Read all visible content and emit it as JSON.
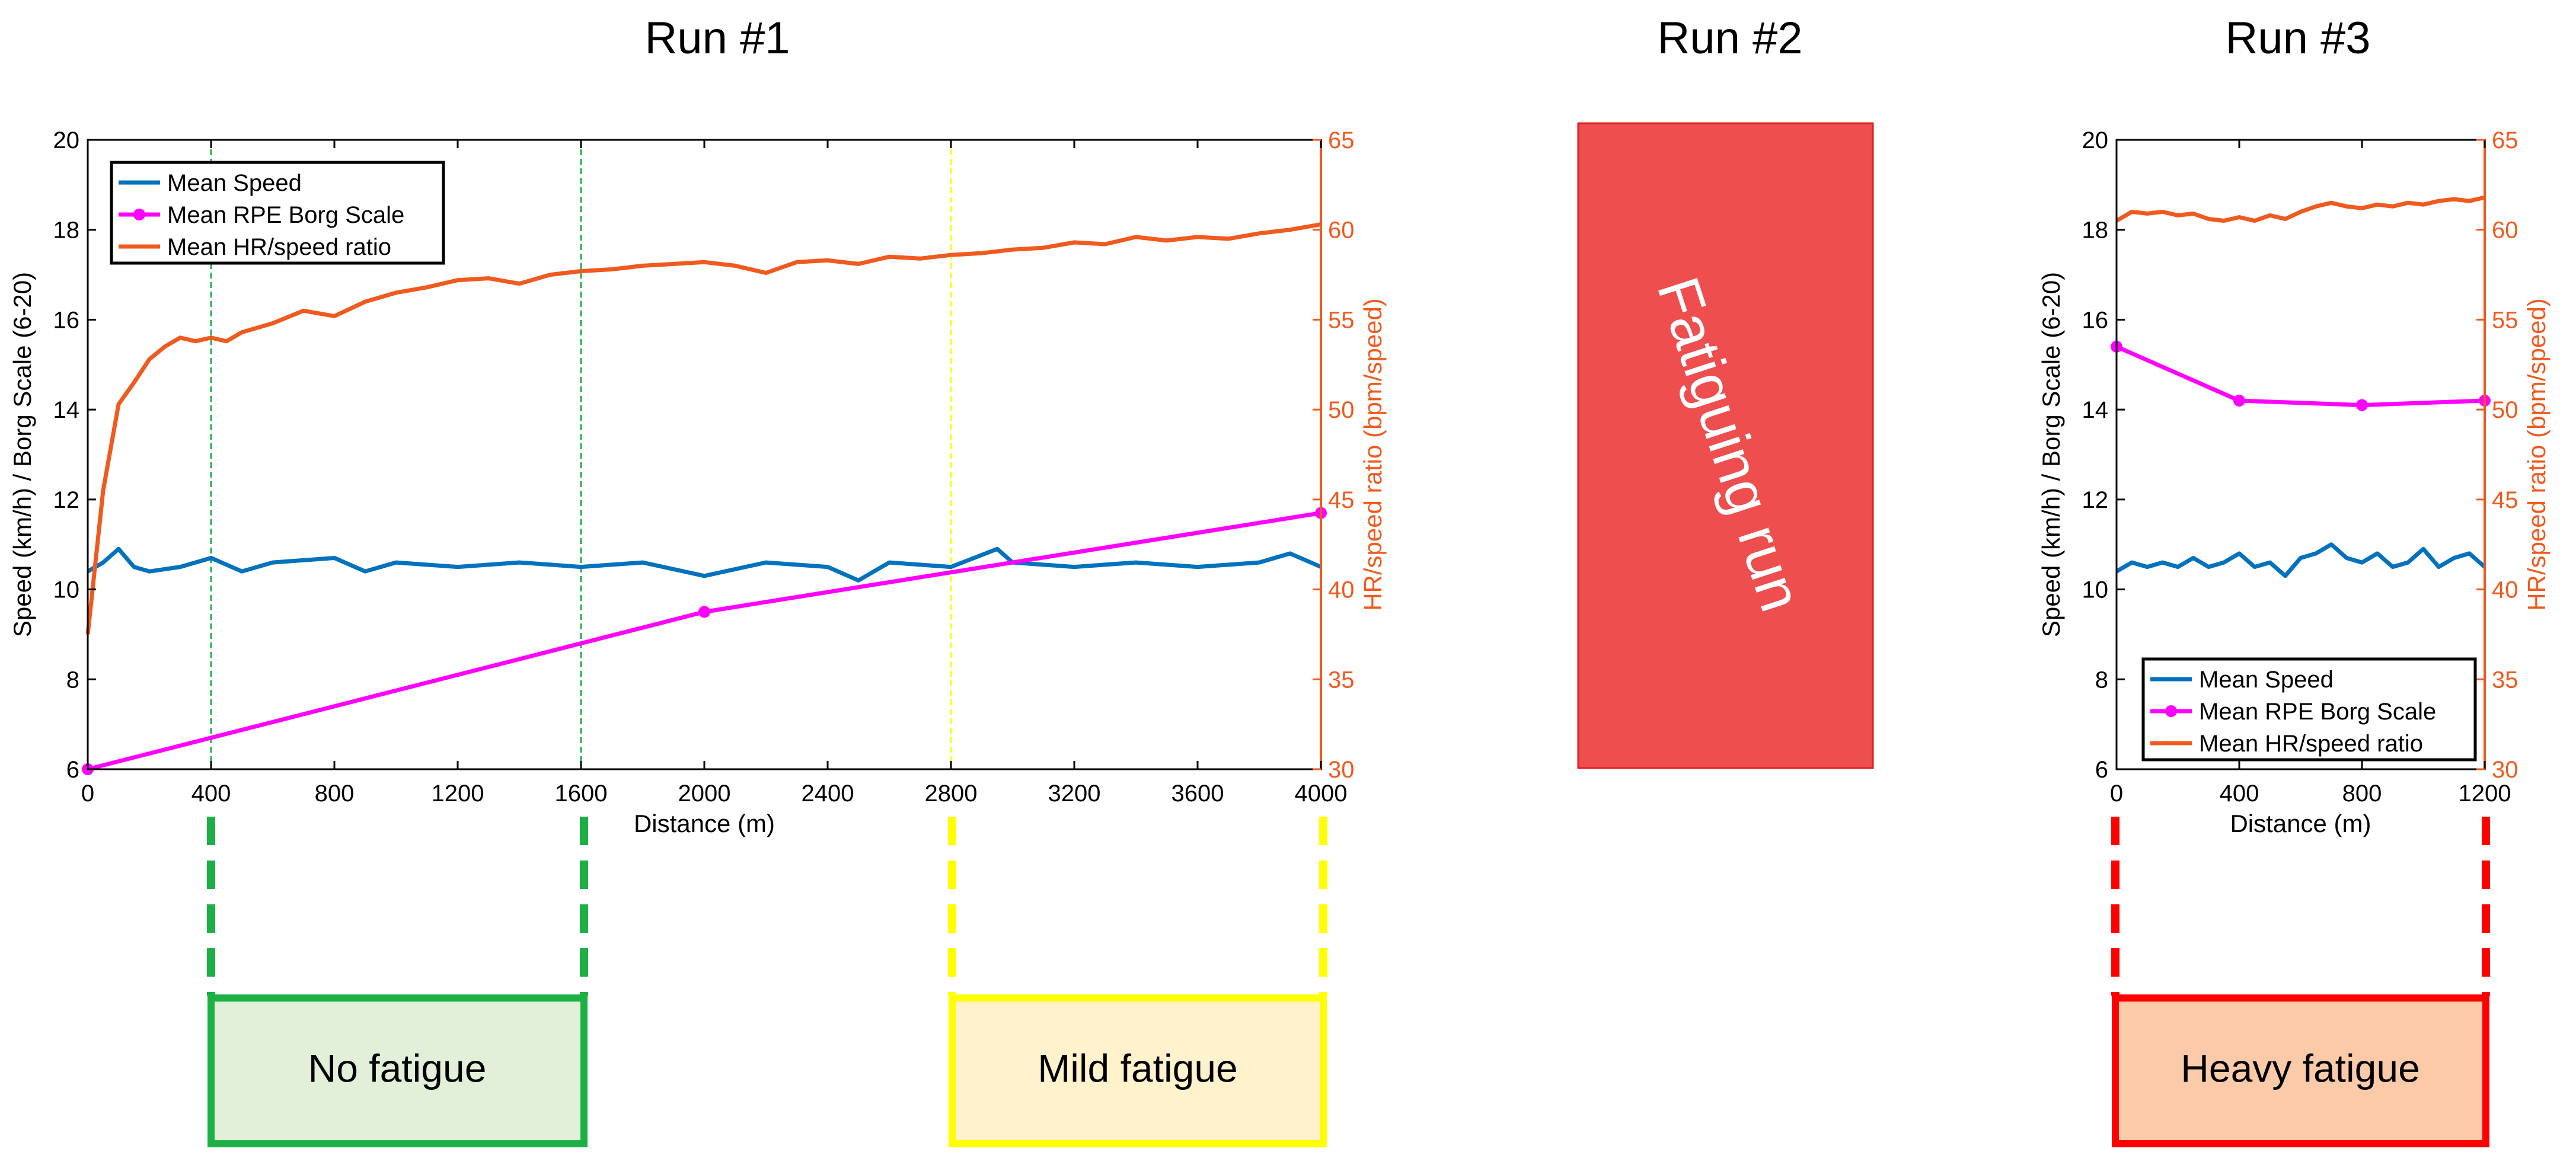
{
  "colors": {
    "speed": "#0072BD",
    "rpe": "#FF00FF",
    "hr": "#F05A1E",
    "green": "#1DB145",
    "yellow": "#FFFF00",
    "red": "#FF0000",
    "no_fatigue_fill": "#E2F0D9",
    "mild_fatigue_fill": "#FFF2CC",
    "heavy_fatigue_fill": "#FBCBA9",
    "fatiguing_run_fill": "#EE4E4E"
  },
  "figure": {
    "run1_title": "Run #1",
    "run2_title": "Run #2",
    "run3_title": "Run #3",
    "fatiguing_run_label": "Fatiguing run",
    "zones": {
      "no_fatigue": "No fatigue",
      "mild_fatigue": "Mild fatigue",
      "heavy_fatigue": "Heavy fatigue"
    }
  },
  "chart_data": [
    {
      "type": "line",
      "title": "Run #1",
      "xlabel": "Distance (m)",
      "ylabel": "Speed (km/h) / Borg Scale (6-20)",
      "ylabel_right": "HR/speed ratio (bpm/speed)",
      "xlim": [
        0,
        4000
      ],
      "ylim": [
        6,
        20
      ],
      "ylim_right": [
        30,
        65
      ],
      "xticks": [
        0,
        400,
        800,
        1200,
        1600,
        2000,
        2400,
        2800,
        3200,
        3600,
        4000
      ],
      "yticks": [
        6,
        8,
        10,
        12,
        14,
        16,
        18,
        20
      ],
      "yticks_right": [
        30,
        35,
        40,
        45,
        50,
        55,
        60,
        65
      ],
      "legend": [
        "Mean Speed",
        "Mean RPE Borg Scale",
        "Mean HR/speed ratio"
      ],
      "legend_position": "top-left",
      "vlines": [
        {
          "x": 400,
          "color": "green"
        },
        {
          "x": 1600,
          "color": "green"
        },
        {
          "x": 2800,
          "color": "yellow"
        },
        {
          "x": 4000,
          "color": "yellow"
        }
      ],
      "series": [
        {
          "name": "Mean Speed",
          "axis": "left",
          "color": "speed",
          "x": [
            0,
            50,
            100,
            150,
            200,
            300,
            400,
            500,
            600,
            800,
            900,
            1000,
            1200,
            1400,
            1600,
            1800,
            2000,
            2200,
            2400,
            2500,
            2600,
            2800,
            2950,
            3000,
            3200,
            3400,
            3600,
            3800,
            3900,
            4000
          ],
          "values": [
            10.4,
            10.6,
            10.9,
            10.5,
            10.4,
            10.5,
            10.7,
            10.4,
            10.6,
            10.7,
            10.4,
            10.6,
            10.5,
            10.6,
            10.5,
            10.6,
            10.3,
            10.6,
            10.5,
            10.2,
            10.6,
            10.5,
            10.9,
            10.6,
            10.5,
            10.6,
            10.5,
            10.6,
            10.8,
            10.5
          ]
        },
        {
          "name": "Mean RPE Borg Scale",
          "axis": "left",
          "color": "rpe",
          "markers": true,
          "x": [
            0,
            2000,
            4000
          ],
          "values": [
            6.0,
            9.5,
            11.7
          ]
        },
        {
          "name": "Mean HR/speed ratio",
          "axis": "right",
          "color": "hr",
          "x": [
            0,
            50,
            100,
            150,
            200,
            250,
            300,
            350,
            400,
            450,
            500,
            600,
            700,
            800,
            900,
            1000,
            1100,
            1200,
            1300,
            1400,
            1500,
            1600,
            1700,
            1800,
            1900,
            2000,
            2100,
            2200,
            2300,
            2400,
            2500,
            2600,
            2700,
            2800,
            2900,
            3000,
            3100,
            3200,
            3300,
            3400,
            3500,
            3600,
            3700,
            3800,
            3900,
            4000
          ],
          "values": [
            37.5,
            45.5,
            50.3,
            51.5,
            52.8,
            53.5,
            54.0,
            53.8,
            54.0,
            53.8,
            54.3,
            54.8,
            55.5,
            55.2,
            56.0,
            56.5,
            56.8,
            57.2,
            57.3,
            57.0,
            57.5,
            57.7,
            57.8,
            58.0,
            58.1,
            58.2,
            58.0,
            57.6,
            58.2,
            58.3,
            58.1,
            58.5,
            58.4,
            58.6,
            58.7,
            58.9,
            59.0,
            59.3,
            59.2,
            59.6,
            59.4,
            59.6,
            59.5,
            59.8,
            60.0,
            60.3
          ]
        }
      ]
    },
    {
      "type": "line",
      "title": "Run #3",
      "xlabel": "Distance (m)",
      "ylabel": "Speed (km/h) / Borg Scale (6-20)",
      "ylabel_right": "HR/speed ratio (bpm/speed)",
      "xlim": [
        0,
        1200
      ],
      "ylim": [
        6,
        20
      ],
      "ylim_right": [
        30,
        65
      ],
      "xticks": [
        0,
        400,
        800,
        1200
      ],
      "yticks": [
        6,
        8,
        10,
        12,
        14,
        16,
        18,
        20
      ],
      "yticks_right": [
        30,
        35,
        40,
        45,
        50,
        55,
        60,
        65
      ],
      "legend": [
        "Mean Speed",
        "Mean RPE Borg Scale",
        "Mean HR/speed ratio"
      ],
      "legend_position": "bottom-right",
      "vlines": [
        {
          "x": 0,
          "color": "red"
        },
        {
          "x": 1200,
          "color": "red"
        }
      ],
      "series": [
        {
          "name": "Mean Speed",
          "axis": "left",
          "color": "speed",
          "x": [
            0,
            50,
            100,
            150,
            200,
            250,
            300,
            350,
            400,
            450,
            500,
            550,
            600,
            650,
            700,
            750,
            800,
            850,
            900,
            950,
            1000,
            1050,
            1100,
            1150,
            1200
          ],
          "values": [
            10.4,
            10.6,
            10.5,
            10.6,
            10.5,
            10.7,
            10.5,
            10.6,
            10.8,
            10.5,
            10.6,
            10.3,
            10.7,
            10.8,
            11.0,
            10.7,
            10.6,
            10.8,
            10.5,
            10.6,
            10.9,
            10.5,
            10.7,
            10.8,
            10.5
          ]
        },
        {
          "name": "Mean RPE Borg Scale",
          "axis": "left",
          "color": "rpe",
          "markers": true,
          "x": [
            0,
            400,
            800,
            1200
          ],
          "values": [
            15.4,
            14.2,
            14.1,
            14.2
          ]
        },
        {
          "name": "Mean HR/speed ratio",
          "axis": "right",
          "color": "hr",
          "x": [
            0,
            50,
            100,
            150,
            200,
            250,
            300,
            350,
            400,
            450,
            500,
            550,
            600,
            650,
            700,
            750,
            800,
            850,
            900,
            950,
            1000,
            1050,
            1100,
            1150,
            1200
          ],
          "values": [
            60.5,
            61.0,
            60.9,
            61.0,
            60.8,
            60.9,
            60.6,
            60.5,
            60.7,
            60.5,
            60.8,
            60.6,
            61.0,
            61.3,
            61.5,
            61.3,
            61.2,
            61.4,
            61.3,
            61.5,
            61.4,
            61.6,
            61.7,
            61.6,
            61.8
          ]
        }
      ]
    }
  ]
}
